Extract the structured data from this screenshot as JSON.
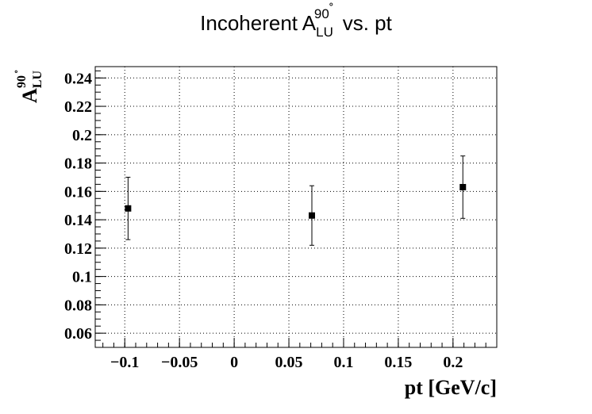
{
  "chart_data": {
    "type": "scatter",
    "title": {
      "main": "Incoherent A",
      "sub": "LU",
      "sup": "90",
      "degree": "˚",
      "tail": " vs. pt"
    },
    "xlabel": "pt [GeV/c]",
    "ylabel": {
      "main": "A",
      "sub": "LU",
      "sup": "90",
      "degree": "˚"
    },
    "xlim": [
      -0.127,
      0.24
    ],
    "ylim": [
      0.05,
      0.248
    ],
    "x_ticks": [
      -0.1,
      -0.05,
      0,
      0.05,
      0.1,
      0.15,
      0.2
    ],
    "x_tick_labels": [
      "−0.1",
      "−0.05",
      "0",
      "0.05",
      "0.1",
      "0.15",
      "0.2"
    ],
    "y_ticks": [
      0.06,
      0.08,
      0.1,
      0.12,
      0.14,
      0.16,
      0.18,
      0.2,
      0.22,
      0.24
    ],
    "y_tick_labels": [
      "0.06",
      "0.08",
      "0.1",
      "0.12",
      "0.14",
      "0.16",
      "0.18",
      "0.2",
      "0.22",
      "0.24"
    ],
    "grid": true,
    "points": [
      {
        "x": -0.097,
        "y": 0.148,
        "err": 0.022
      },
      {
        "x": 0.071,
        "y": 0.143,
        "err": 0.021
      },
      {
        "x": 0.209,
        "y": 0.163,
        "err": 0.022
      }
    ]
  }
}
